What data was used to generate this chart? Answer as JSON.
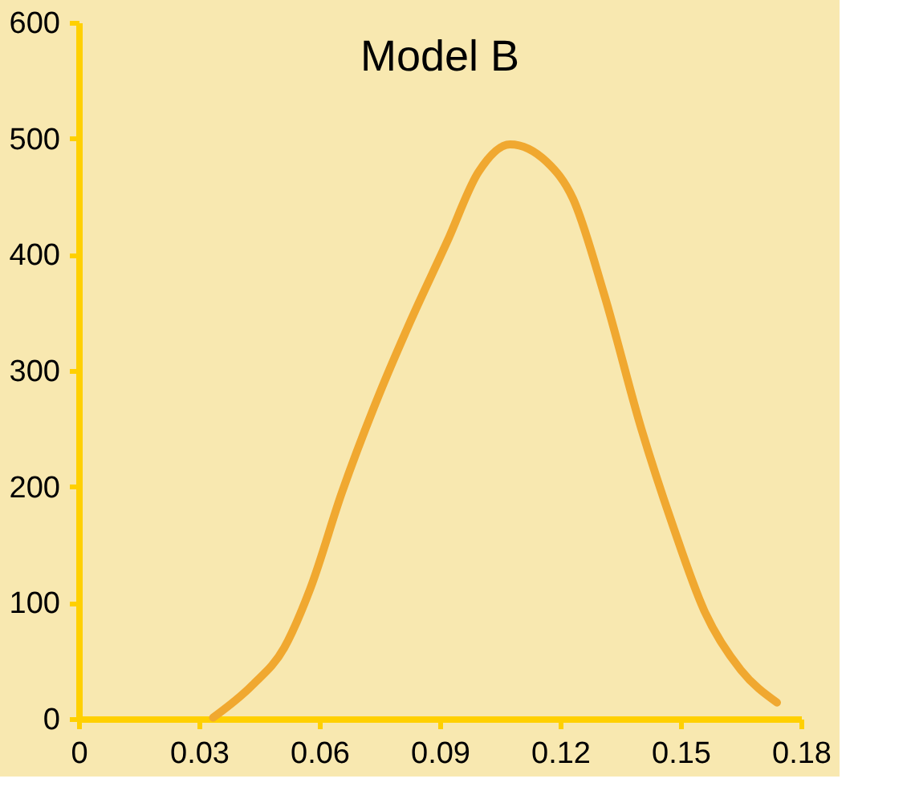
{
  "chart_data": {
    "type": "line",
    "title": "Model B",
    "x": [
      0.0335,
      0.0433,
      0.0512,
      0.0577,
      0.0656,
      0.0747,
      0.0826,
      0.0918,
      0.0996,
      0.1075,
      0.1166,
      0.1232,
      0.131,
      0.1402,
      0.148,
      0.1559,
      0.165,
      0.174
    ],
    "series": [
      {
        "color": "#f0a830",
        "values": [
          1,
          29,
          61,
          112,
          195,
          278,
          342,
          411,
          471,
          495,
          480,
          448,
          365,
          250,
          167,
          93,
          42,
          14
        ]
      }
    ],
    "xlim": [
      0,
      0.18
    ],
    "xticks": [
      0,
      0.03,
      0.06,
      0.09,
      0.12,
      0.15,
      0.18
    ],
    "ylim": [
      0,
      600
    ],
    "yticks": [
      0,
      100,
      200,
      300,
      400,
      500,
      600
    ],
    "grid": false,
    "legend": false,
    "marker": "none",
    "line_style": "solid"
  }
}
